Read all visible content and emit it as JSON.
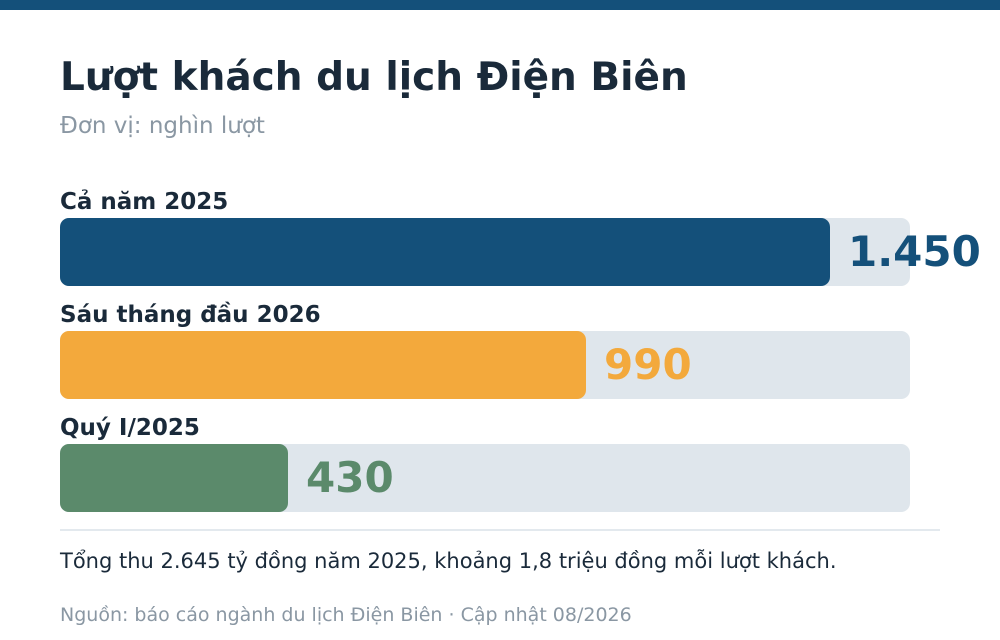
{
  "header": {
    "title": "Lượt khách du lịch Điện Biên",
    "subtitle": "Đơn vị: nghìn lượt"
  },
  "colors": {
    "top_bar": "#14507a",
    "track": "#dfe6ec",
    "text": "#1a2a3a",
    "muted": "#8a97a3"
  },
  "chart_data": {
    "type": "bar",
    "orientation": "horizontal",
    "title": "Lượt khách du lịch Điện Biên",
    "subtitle": "Đơn vị: nghìn lượt",
    "categories": [
      "Cả năm 2025",
      "Sáu tháng đầu 2026",
      "Quý I/2025"
    ],
    "values": [
      1450,
      990,
      430
    ],
    "value_labels": [
      "1.450",
      "990",
      "430"
    ],
    "colors": [
      "#14507a",
      "#f3a93c",
      "#5b8a6b"
    ],
    "xlim": [
      0,
      1600
    ],
    "grid": false,
    "legend": "none"
  },
  "footer": {
    "note": "Tổng thu 2.645 tỷ đồng năm 2025, khoảng 1,8 triệu đồng mỗi lượt khách.",
    "source": "Nguồn: báo cáo ngành du lịch Điện Biên · Cập nhật 08/2026"
  }
}
